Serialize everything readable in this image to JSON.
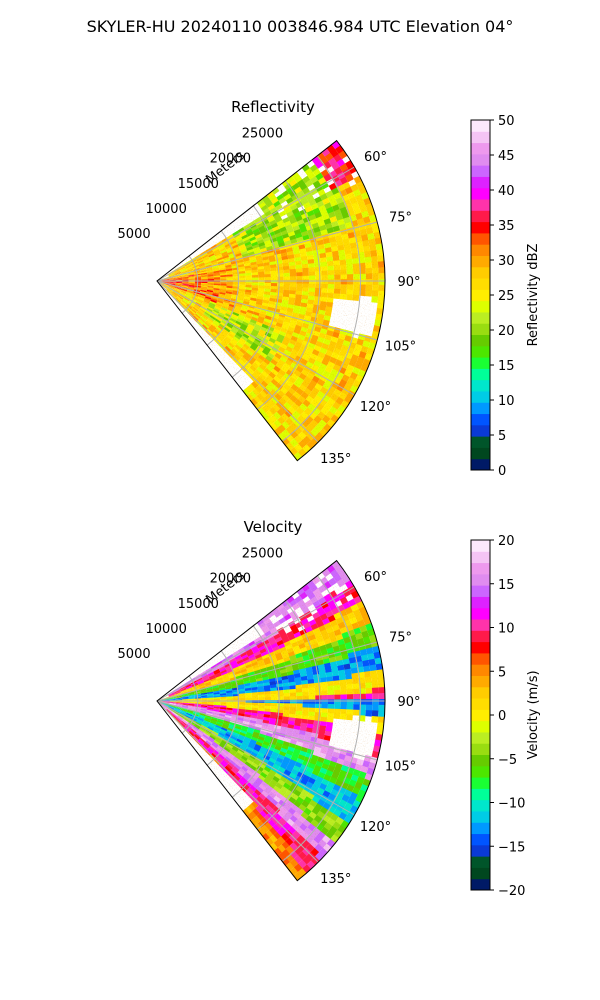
{
  "figure": {
    "title": "SKYLER-HU  20240110  003846.984 UTC Elevation 04°"
  },
  "chart_data": [
    {
      "type": "heatmap",
      "subtype": "polar-ppi-sector",
      "title": "Reflectivity",
      "radial_label": "Meters",
      "radial_ticks": [
        5000,
        10000,
        15000,
        20000,
        25000
      ],
      "radial_tick_labels": [
        "5000",
        "10000",
        "15000",
        "20000",
        "25000"
      ],
      "range_max_m": 28000,
      "azimuth_range_deg": [
        52,
        142
      ],
      "azimuth_ticks": [
        60,
        75,
        90,
        105,
        120,
        135
      ],
      "azimuth_tick_labels": [
        "60°",
        "75°",
        "90°",
        "105°",
        "120°",
        "135°"
      ],
      "grid": true,
      "colorbar": {
        "label": "Reflectivity dBZ",
        "range": [
          0,
          50
        ],
        "ticks": [
          0,
          5,
          10,
          15,
          20,
          25,
          30,
          35,
          40,
          45,
          50
        ],
        "tick_labels": [
          "0",
          "5",
          "10",
          "15",
          "20",
          "25",
          "30",
          "35",
          "40",
          "45",
          "50"
        ],
        "colors": [
          "#001a66",
          "#00471f",
          "#00552a",
          "#0a3ad6",
          "#0055ff",
          "#0099ff",
          "#00cce6",
          "#00e6cc",
          "#00ff99",
          "#1aff33",
          "#4de600",
          "#66cc00",
          "#99dd11",
          "#bbee22",
          "#ddff00",
          "#ffee00",
          "#ffdd00",
          "#ffcc00",
          "#ffaa00",
          "#ff8800",
          "#ff5500",
          "#ff0000",
          "#ff1a4a",
          "#ff33aa",
          "#ff00ff",
          "#dd22ff",
          "#cc66ff",
          "#e08cf0",
          "#ee99ee",
          "#f5c4f5",
          "#fde8fd"
        ]
      },
      "field_description_values_dbz": {
        "near_range_core": 35,
        "typical": 27,
        "northern_green_band": 21,
        "far_northeast_patch": 36,
        "no_echo_patch_azimuth_deg": 100
      }
    },
    {
      "type": "heatmap",
      "subtype": "polar-ppi-sector",
      "title": "Velocity",
      "radial_label": "Meters",
      "radial_ticks": [
        5000,
        10000,
        15000,
        20000,
        25000
      ],
      "radial_tick_labels": [
        "5000",
        "10000",
        "15000",
        "20000",
        "25000"
      ],
      "range_max_m": 28000,
      "azimuth_range_deg": [
        52,
        142
      ],
      "azimuth_ticks": [
        60,
        75,
        90,
        105,
        120,
        135
      ],
      "azimuth_tick_labels": [
        "60°",
        "75°",
        "90°",
        "105°",
        "120°",
        "135°"
      ],
      "grid": true,
      "colorbar": {
        "label": "Velocity (m/s)",
        "range": [
          -20,
          20
        ],
        "ticks": [
          -20,
          -15,
          -10,
          -5,
          0,
          5,
          10,
          15,
          20
        ],
        "tick_labels": [
          "−20",
          "−15",
          "−10",
          "−5",
          "0",
          "5",
          "10",
          "15",
          "20"
        ],
        "colors": [
          "#001a66",
          "#00471f",
          "#00552a",
          "#0a3ad6",
          "#0055ff",
          "#0099ff",
          "#00cce6",
          "#00e6cc",
          "#00ff99",
          "#1aff33",
          "#4de600",
          "#66cc00",
          "#99dd11",
          "#bbee22",
          "#ddff00",
          "#ffee00",
          "#ffdd00",
          "#ffcc00",
          "#ffaa00",
          "#ff8800",
          "#ff5500",
          "#ff0000",
          "#ff1a4a",
          "#ff33aa",
          "#ff00ff",
          "#dd22ff",
          "#cc66ff",
          "#e08cf0",
          "#ee99ee",
          "#f5c4f5",
          "#fde8fd"
        ]
      },
      "bands": [
        {
          "az_start": 52,
          "az_end": 64,
          "velocity": 15
        },
        {
          "az_start": 64,
          "az_end": 70,
          "velocity": 10
        },
        {
          "az_start": 70,
          "az_end": 76,
          "velocity": 2
        },
        {
          "az_start": 76,
          "az_end": 82,
          "velocity": -6
        },
        {
          "az_start": 82,
          "az_end": 88,
          "velocity": -13
        },
        {
          "az_start": 88,
          "az_end": 93,
          "velocity": 1
        },
        {
          "az_start": 93,
          "az_end": 98,
          "velocity": 10
        },
        {
          "az_start": 98,
          "az_end": 104,
          "velocity": 16
        },
        {
          "az_start": 104,
          "az_end": 110,
          "velocity": -7
        },
        {
          "az_start": 110,
          "az_end": 117,
          "velocity": -12
        },
        {
          "az_start": 117,
          "az_end": 123,
          "velocity": -4
        },
        {
          "az_start": 123,
          "az_end": 128,
          "velocity": 16
        },
        {
          "az_start": 128,
          "az_end": 133,
          "velocity": 10
        },
        {
          "az_start": 133,
          "az_end": 138,
          "velocity": 5
        },
        {
          "az_start": 138,
          "az_end": 142,
          "velocity": 1
        }
      ],
      "no_echo_patch_azimuth_deg": 100
    }
  ]
}
